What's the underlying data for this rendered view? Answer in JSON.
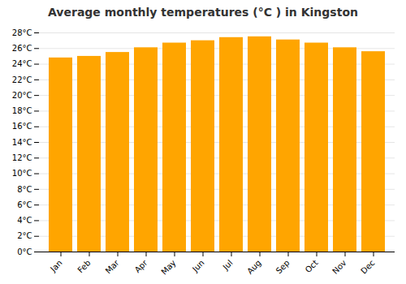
{
  "chart_data": {
    "type": "bar",
    "title": "Average monthly temperatures (°C ) in Kingston",
    "categories": [
      "Jan",
      "Feb",
      "Mar",
      "Apr",
      "May",
      "Jun",
      "Jul",
      "Aug",
      "Sep",
      "Oct",
      "Nov",
      "Dec"
    ],
    "values": [
      24.8,
      25.0,
      25.5,
      26.1,
      26.7,
      27.0,
      27.4,
      27.5,
      27.1,
      26.7,
      26.1,
      25.6
    ],
    "color": "#FFA500",
    "ylim": [
      0,
      28
    ],
    "yticks": [
      {
        "value": 0,
        "label": "0°C"
      },
      {
        "value": 2,
        "label": "2°C"
      },
      {
        "value": 4,
        "label": "4°C"
      },
      {
        "value": 6,
        "label": "6°C"
      },
      {
        "value": 8,
        "label": "8°C"
      },
      {
        "value": 10,
        "label": "10°C"
      },
      {
        "value": 12,
        "label": "12°C"
      },
      {
        "value": 14,
        "label": "14°C"
      },
      {
        "value": 16,
        "label": "16°C"
      },
      {
        "value": 18,
        "label": "18°C"
      },
      {
        "value": 20,
        "label": "20°C"
      },
      {
        "value": 22,
        "label": "22°C"
      },
      {
        "value": 24,
        "label": "24°C"
      },
      {
        "value": 26,
        "label": "26°C"
      },
      {
        "value": 28,
        "label": "28°C"
      }
    ],
    "grid": true
  }
}
